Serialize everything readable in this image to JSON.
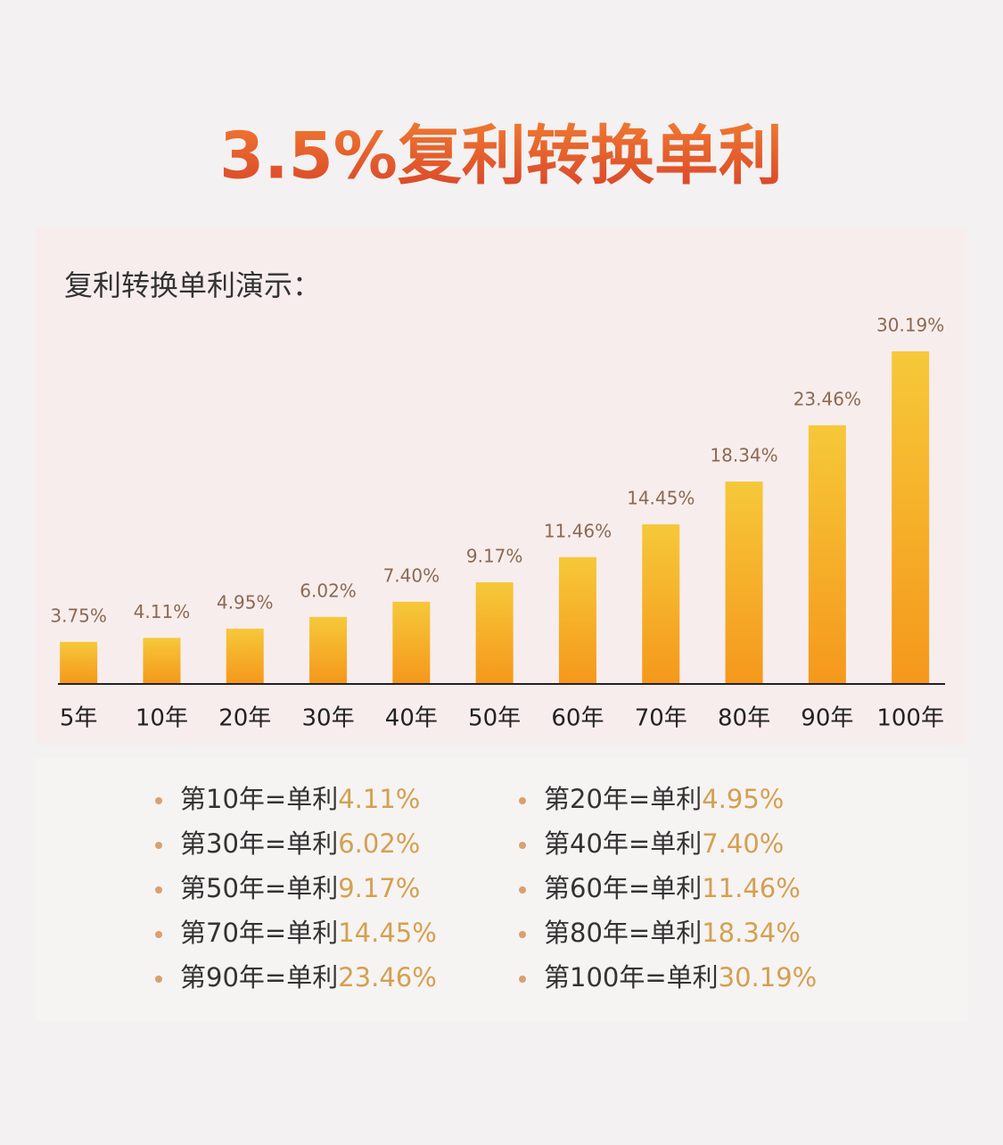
{
  "chart_data": {
    "type": "bar",
    "title": "3.5%复利转换单利",
    "subtitle": "复利转换单利演示：",
    "categories": [
      "5年",
      "10年",
      "20年",
      "30年",
      "40年",
      "50年",
      "60年",
      "70年",
      "80年",
      "90年",
      "100年"
    ],
    "values": [
      3.75,
      4.11,
      4.95,
      6.02,
      7.4,
      9.17,
      11.46,
      14.45,
      18.34,
      23.46,
      30.19
    ],
    "value_labels": [
      "3.75%",
      "4.11%",
      "4.95%",
      "6.02%",
      "7.40%",
      "9.17%",
      "11.46%",
      "14.45%",
      "18.34%",
      "23.46%",
      "30.19%"
    ],
    "color": "#f5981b"
  },
  "notes": [
    {
      "label": "第10年=单利",
      "value": "4.11%"
    },
    {
      "label": "第20年=单利",
      "value": "4.95%"
    },
    {
      "label": "第30年=单利",
      "value": "6.02%"
    },
    {
      "label": "第40年=单利",
      "value": "7.40%"
    },
    {
      "label": "第50年=单利",
      "value": "9.17%"
    },
    {
      "label": "第60年=单利",
      "value": "11.46%"
    },
    {
      "label": "第70年=单利",
      "value": "14.45%"
    },
    {
      "label": "第80年=单利",
      "value": "18.34%"
    },
    {
      "label": "第90年=单利",
      "value": "23.46%"
    },
    {
      "label": "第100年=单利",
      "value": "30.19%"
    }
  ]
}
